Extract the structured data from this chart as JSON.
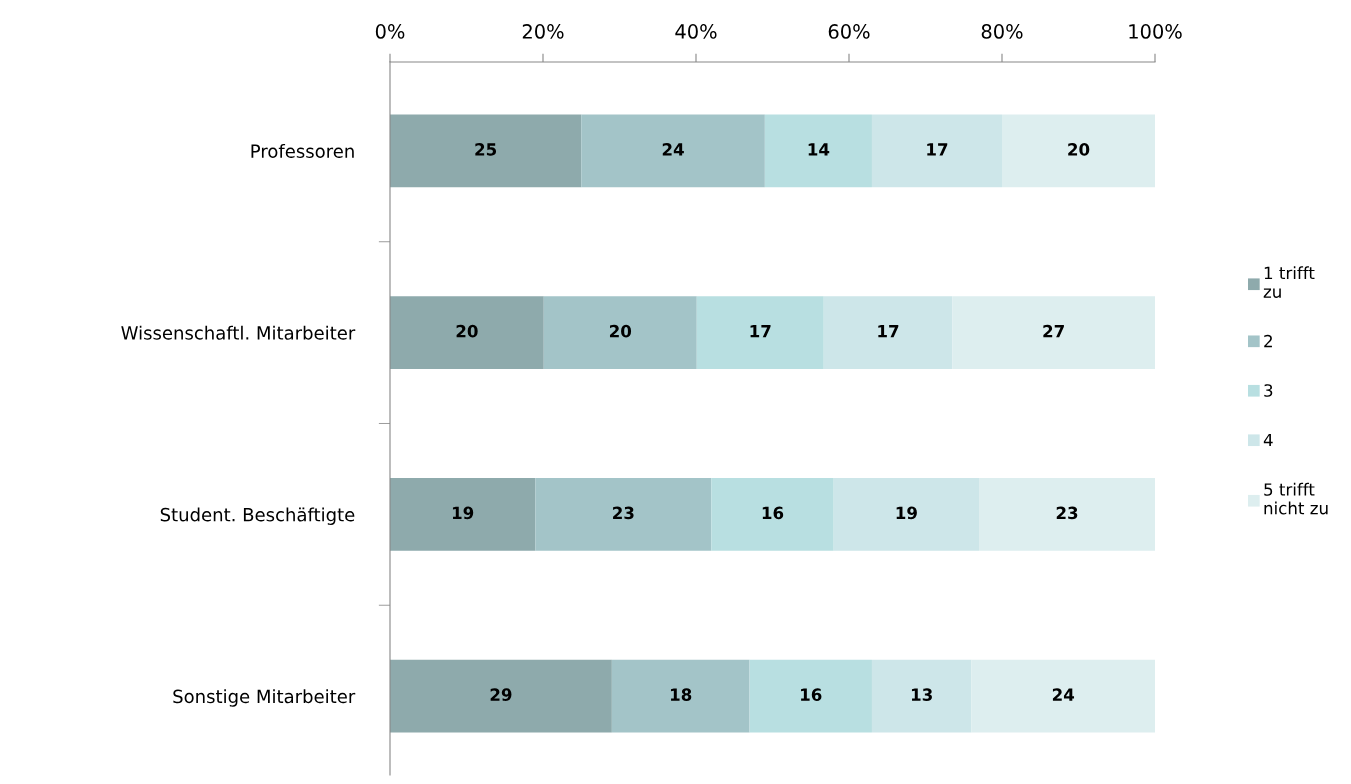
{
  "chart_data": {
    "type": "bar",
    "orientation": "horizontal",
    "stacked": true,
    "categories": [
      "Professoren",
      "Wissenschaftl. Mitarbeiter",
      "Student. Beschäftigte",
      "Sonstige Mitarbeiter"
    ],
    "series": [
      {
        "name": "1 trifft\nzu",
        "color": "#8eaaac",
        "values": [
          25,
          20.1,
          19,
          29
        ],
        "value_labels": [
          "25",
          "20",
          "19",
          "29"
        ]
      },
      {
        "name": "2",
        "color": "#a3c4c8",
        "values": [
          24,
          20,
          23,
          18
        ],
        "value_labels": [
          "24",
          "20",
          "23",
          "18"
        ]
      },
      {
        "name": "3",
        "color": "#b8dfe1",
        "values": [
          14,
          16.6,
          16,
          16
        ],
        "value_labels": [
          "14",
          "17",
          "16",
          "16"
        ]
      },
      {
        "name": "4",
        "color": "#cde6e9",
        "values": [
          17,
          16.8,
          19,
          13
        ],
        "value_labels": [
          "17",
          "17",
          "19",
          "13"
        ]
      },
      {
        "name": "5 trifft\nnicht zu",
        "color": "#ddeeef",
        "values": [
          20,
          26.5,
          23,
          24
        ],
        "value_labels": [
          "20",
          "27",
          "23",
          "24"
        ]
      }
    ],
    "xlim": [
      0,
      100
    ],
    "xticks": [
      {
        "value": 0,
        "label": "0%"
      },
      {
        "value": 20,
        "label": "20%"
      },
      {
        "value": 40,
        "label": "40%"
      },
      {
        "value": 60,
        "label": "60%"
      },
      {
        "value": 80,
        "label": "80%"
      },
      {
        "value": 100,
        "label": "100%"
      }
    ],
    "grid": false,
    "legend": "right"
  }
}
